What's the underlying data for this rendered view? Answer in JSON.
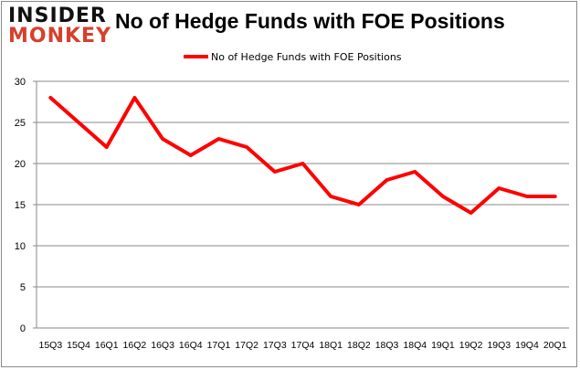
{
  "logo": {
    "line1": "INSIDER",
    "line2": "MONKEY"
  },
  "chart_data": {
    "type": "line",
    "title": "No of Hedge Funds with FOE Positions",
    "categories": [
      "15Q3",
      "15Q4",
      "16Q1",
      "16Q2",
      "16Q3",
      "16Q4",
      "17Q1",
      "17Q2",
      "17Q3",
      "17Q4",
      "18Q1",
      "18Q2",
      "18Q3",
      "18Q4",
      "19Q1",
      "19Q2",
      "19Q3",
      "19Q4",
      "20Q1"
    ],
    "series": [
      {
        "name": "No of Hedge Funds with FOE Positions",
        "color": "#ff0000",
        "values": [
          28,
          25,
          22,
          28,
          23,
          21,
          23,
          22,
          19,
          20,
          16,
          15,
          18,
          19,
          16,
          14,
          17,
          16,
          16
        ]
      }
    ],
    "ylim": [
      0,
      30
    ],
    "yticks": [
      0,
      5,
      10,
      15,
      20,
      25,
      30
    ],
    "grid": true,
    "legend": "top-center"
  }
}
